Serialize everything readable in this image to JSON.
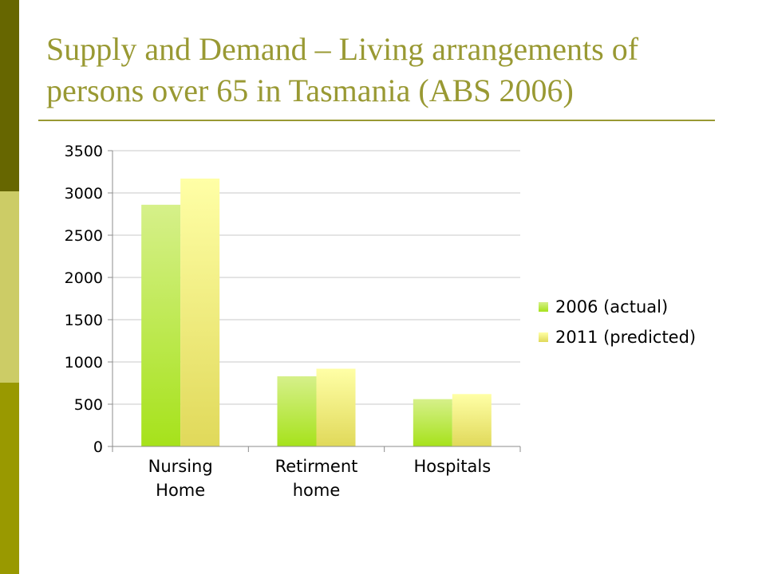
{
  "slide": {
    "title": "Supply and Demand – Living arrangements of persons over 65 in Tasmania (ABS 2006)"
  },
  "colors": {
    "band_top": "#666600",
    "band_mid": "#cccc66",
    "band_bot": "#999900",
    "title": "#999933",
    "series_2006_top": "#d6f08a",
    "series_2006_bottom": "#a6e21b",
    "series_2011_top": "#ffffa6",
    "series_2011_bottom": "#e0d95a",
    "gridline": "#c8c8c8"
  },
  "chart_data": {
    "type": "bar",
    "title": "",
    "xlabel": "",
    "ylabel": "",
    "categories": [
      [
        "Nursing",
        "Home"
      ],
      [
        "Retirment",
        "home"
      ],
      [
        "Hospitals"
      ]
    ],
    "series": [
      {
        "name": "2006 (actual)",
        "values": [
          2860,
          830,
          560
        ]
      },
      {
        "name": "2011 (predicted)",
        "values": [
          3170,
          920,
          620
        ]
      }
    ],
    "ylim": [
      0,
      3500
    ],
    "yticks": [
      0,
      500,
      1000,
      1500,
      2000,
      2500,
      3000,
      3500
    ],
    "grid": true,
    "legend_position": "right"
  }
}
